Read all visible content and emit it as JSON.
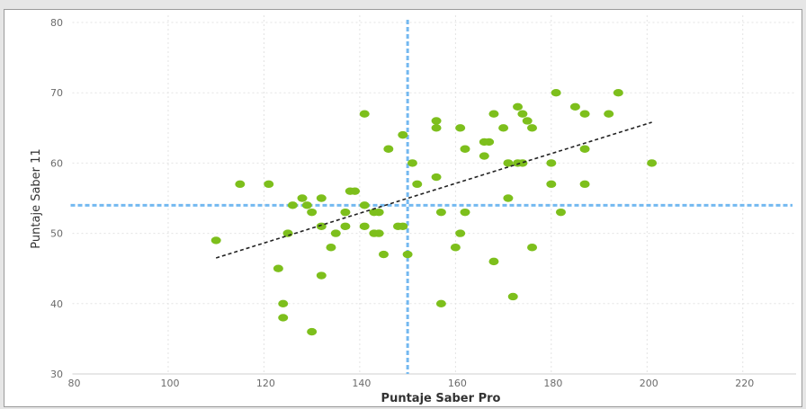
{
  "colors": {
    "point": "#7dbf1c",
    "reference_line": "#74b9f0",
    "trend_line": "#222222",
    "grid": "#e3e3e3"
  },
  "chart_data": {
    "type": "scatter",
    "title": "",
    "xlabel": "Puntaje Saber Pro",
    "ylabel": "Puntaje Saber 11",
    "xlim": [
      80,
      230
    ],
    "ylim": [
      30,
      80
    ],
    "x_ticks": [
      80,
      100,
      120,
      140,
      160,
      180,
      200,
      220
    ],
    "y_ticks": [
      30,
      40,
      50,
      60,
      70,
      80
    ],
    "grid": "dotted",
    "reference_lines": {
      "x": 150,
      "y": 54
    },
    "trend_line": {
      "x": [
        110,
        201
      ],
      "y": [
        46.5,
        65.8
      ]
    },
    "points": [
      {
        "x": 110,
        "y": 49
      },
      {
        "x": 115,
        "y": 57
      },
      {
        "x": 121,
        "y": 57
      },
      {
        "x": 123,
        "y": 45
      },
      {
        "x": 124,
        "y": 40
      },
      {
        "x": 124,
        "y": 38
      },
      {
        "x": 125,
        "y": 50
      },
      {
        "x": 126,
        "y": 54
      },
      {
        "x": 128,
        "y": 55
      },
      {
        "x": 129,
        "y": 54
      },
      {
        "x": 130,
        "y": 53
      },
      {
        "x": 130,
        "y": 36
      },
      {
        "x": 132,
        "y": 55
      },
      {
        "x": 132,
        "y": 51
      },
      {
        "x": 132,
        "y": 44
      },
      {
        "x": 134,
        "y": 48
      },
      {
        "x": 135,
        "y": 50
      },
      {
        "x": 137,
        "y": 53
      },
      {
        "x": 137,
        "y": 51
      },
      {
        "x": 138,
        "y": 56
      },
      {
        "x": 139,
        "y": 56
      },
      {
        "x": 141,
        "y": 67
      },
      {
        "x": 141,
        "y": 54
      },
      {
        "x": 141,
        "y": 51
      },
      {
        "x": 143,
        "y": 53
      },
      {
        "x": 143,
        "y": 50
      },
      {
        "x": 144,
        "y": 53
      },
      {
        "x": 144,
        "y": 50
      },
      {
        "x": 145,
        "y": 47
      },
      {
        "x": 146,
        "y": 62
      },
      {
        "x": 148,
        "y": 51
      },
      {
        "x": 149,
        "y": 64
      },
      {
        "x": 149,
        "y": 51
      },
      {
        "x": 150,
        "y": 47
      },
      {
        "x": 151,
        "y": 60
      },
      {
        "x": 152,
        "y": 57
      },
      {
        "x": 156,
        "y": 66
      },
      {
        "x": 156,
        "y": 65
      },
      {
        "x": 156,
        "y": 58
      },
      {
        "x": 157,
        "y": 53
      },
      {
        "x": 157,
        "y": 40
      },
      {
        "x": 160,
        "y": 48
      },
      {
        "x": 161,
        "y": 65
      },
      {
        "x": 161,
        "y": 50
      },
      {
        "x": 162,
        "y": 62
      },
      {
        "x": 162,
        "y": 53
      },
      {
        "x": 166,
        "y": 63
      },
      {
        "x": 166,
        "y": 61
      },
      {
        "x": 167,
        "y": 63
      },
      {
        "x": 168,
        "y": 67
      },
      {
        "x": 168,
        "y": 46
      },
      {
        "x": 170,
        "y": 65
      },
      {
        "x": 171,
        "y": 60
      },
      {
        "x": 171,
        "y": 55
      },
      {
        "x": 172,
        "y": 41
      },
      {
        "x": 173,
        "y": 68
      },
      {
        "x": 173,
        "y": 60
      },
      {
        "x": 174,
        "y": 67
      },
      {
        "x": 174,
        "y": 60
      },
      {
        "x": 175,
        "y": 66
      },
      {
        "x": 176,
        "y": 65
      },
      {
        "x": 176,
        "y": 48
      },
      {
        "x": 180,
        "y": 60
      },
      {
        "x": 180,
        "y": 57
      },
      {
        "x": 181,
        "y": 70
      },
      {
        "x": 182,
        "y": 53
      },
      {
        "x": 185,
        "y": 68
      },
      {
        "x": 187,
        "y": 67
      },
      {
        "x": 187,
        "y": 62
      },
      {
        "x": 187,
        "y": 57
      },
      {
        "x": 192,
        "y": 67
      },
      {
        "x": 194,
        "y": 70
      },
      {
        "x": 201,
        "y": 60
      }
    ]
  }
}
